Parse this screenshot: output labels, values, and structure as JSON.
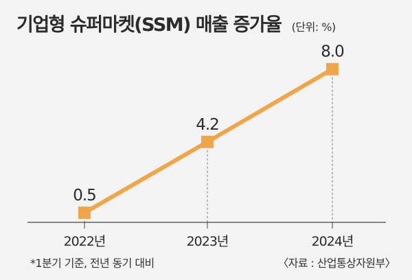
{
  "title": "기업형 슈퍼마켓(SSM) 매출 증가율",
  "unit": "(단위: %)",
  "footnote": "*1분기 기준, 전년 동기 대비",
  "source": "〈자료 : 산업통상자원부〉",
  "colors": {
    "series": "#f0a54b",
    "marker": "#f0a54b",
    "guide": "#777777",
    "baseline": "#444444",
    "background": "#f3f3f3"
  },
  "chart_data": {
    "type": "line",
    "title": "기업형 슈퍼마켓(SSM) 매출 증가율",
    "xlabel": "",
    "ylabel": "",
    "unit": "%",
    "categories": [
      "2022년",
      "2023년",
      "2024년"
    ],
    "series": [
      {
        "values": [
          0.5,
          4.2,
          8.0
        ]
      }
    ],
    "data_labels": [
      "0.5",
      "4.2",
      "8.0"
    ],
    "ylim": [
      0,
      8.6
    ],
    "grid": false,
    "legend": "none"
  }
}
